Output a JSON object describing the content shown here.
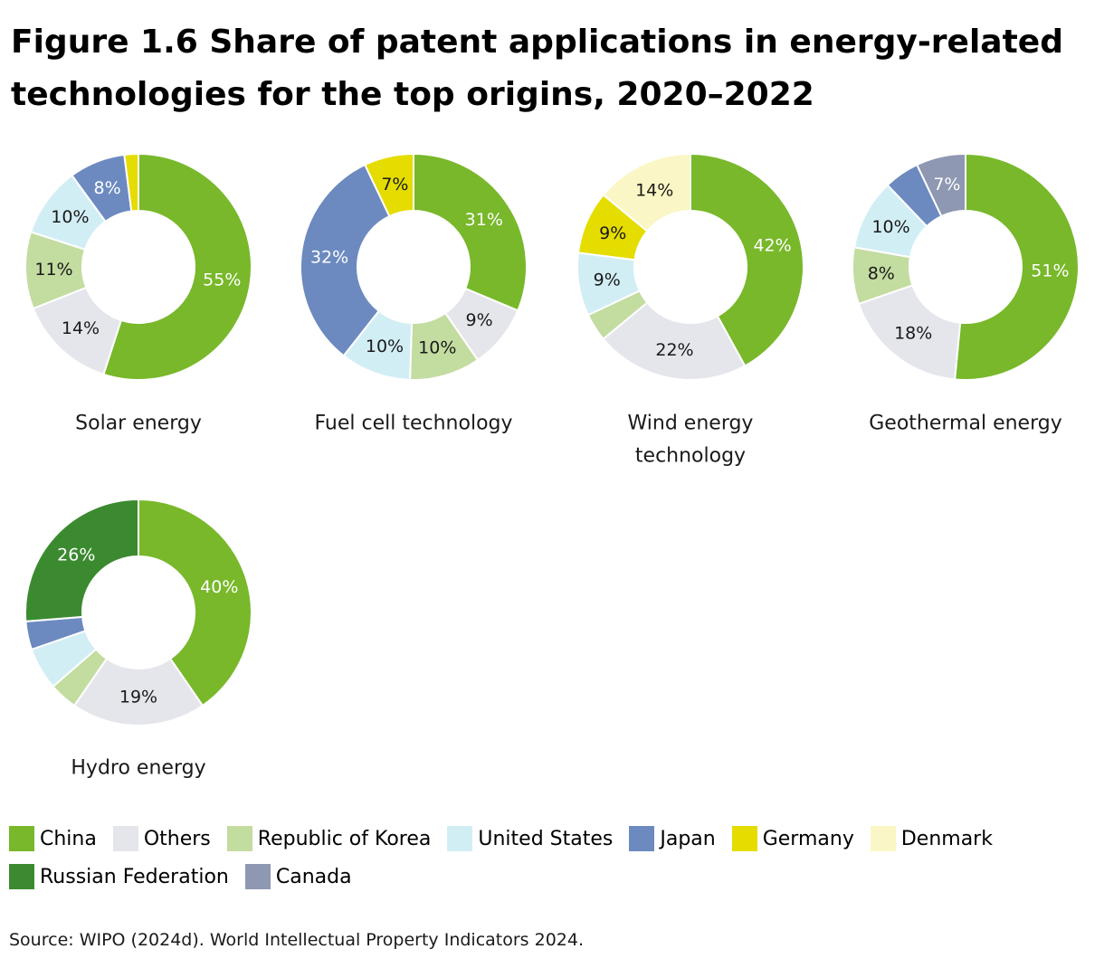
{
  "title": "Figure 1.6 Share of patent applications in energy-related technologies for the top origins, 2020–2022",
  "source": "Source: WIPO (2024d). World Intellectual Property Indicators 2024.",
  "colors": {
    "China": "#78b82a",
    "Others": "#e5e6ec",
    "Republic of Korea": "#c3dca0",
    "United States": "#d2eef5",
    "Japan": "#6c8abf",
    "Germany": "#e5dc00",
    "Denmark": "#fbf6c5",
    "Russian Federation": "#3c8a30",
    "Canada": "#8e98b2"
  },
  "legend": [
    [
      "China",
      "Others",
      "Republic of Korea",
      "United States",
      "Japan",
      "Germany",
      "Denmark"
    ],
    [
      "Russian Federation",
      "Canada"
    ]
  ],
  "chart_data": [
    {
      "type": "pie",
      "caption": [
        "Solar energy"
      ],
      "slices": [
        {
          "origin": "China",
          "value": 55,
          "label": "55%"
        },
        {
          "origin": "Others",
          "value": 14,
          "label": "14%"
        },
        {
          "origin": "Republic of Korea",
          "value": 11,
          "label": "11%"
        },
        {
          "origin": "United States",
          "value": 10,
          "label": "10%"
        },
        {
          "origin": "Japan",
          "value": 8,
          "label": "8%"
        },
        {
          "origin": "Germany",
          "value": 2,
          "label": ""
        }
      ]
    },
    {
      "type": "pie",
      "caption": [
        "Fuel cell technology"
      ],
      "slices": [
        {
          "origin": "China",
          "value": 31,
          "label": "31%"
        },
        {
          "origin": "Others",
          "value": 9,
          "label": "9%"
        },
        {
          "origin": "Republic of Korea",
          "value": 10,
          "label": "10%"
        },
        {
          "origin": "United States",
          "value": 10,
          "label": "10%"
        },
        {
          "origin": "Japan",
          "value": 32,
          "label": "32%"
        },
        {
          "origin": "Germany",
          "value": 7,
          "label": "7%"
        }
      ]
    },
    {
      "type": "pie",
      "caption": [
        "Wind energy",
        "technology"
      ],
      "slices": [
        {
          "origin": "China",
          "value": 42,
          "label": "42%"
        },
        {
          "origin": "Others",
          "value": 22,
          "label": "22%"
        },
        {
          "origin": "Republic of Korea",
          "value": 4,
          "label": ""
        },
        {
          "origin": "United States",
          "value": 9,
          "label": "9%"
        },
        {
          "origin": "Germany",
          "value": 9,
          "label": "9%"
        },
        {
          "origin": "Denmark",
          "value": 14,
          "label": "14%"
        }
      ]
    },
    {
      "type": "pie",
      "caption": [
        "Geothermal energy"
      ],
      "slices": [
        {
          "origin": "China",
          "value": 51,
          "label": "51%"
        },
        {
          "origin": "Others",
          "value": 18,
          "label": "18%"
        },
        {
          "origin": "Republic of Korea",
          "value": 8,
          "label": "8%"
        },
        {
          "origin": "United States",
          "value": 10,
          "label": "10%"
        },
        {
          "origin": "Japan",
          "value": 5,
          "label": ""
        },
        {
          "origin": "Canada",
          "value": 7,
          "label": "7%"
        }
      ]
    },
    {
      "type": "pie",
      "caption": [
        "Hydro energy"
      ],
      "slices": [
        {
          "origin": "China",
          "value": 40,
          "label": "40%"
        },
        {
          "origin": "Others",
          "value": 19,
          "label": "19%"
        },
        {
          "origin": "Republic of Korea",
          "value": 4,
          "label": ""
        },
        {
          "origin": "United States",
          "value": 6,
          "label": ""
        },
        {
          "origin": "Japan",
          "value": 4,
          "label": ""
        },
        {
          "origin": "Russian Federation",
          "value": 26,
          "label": "26%"
        }
      ]
    }
  ]
}
